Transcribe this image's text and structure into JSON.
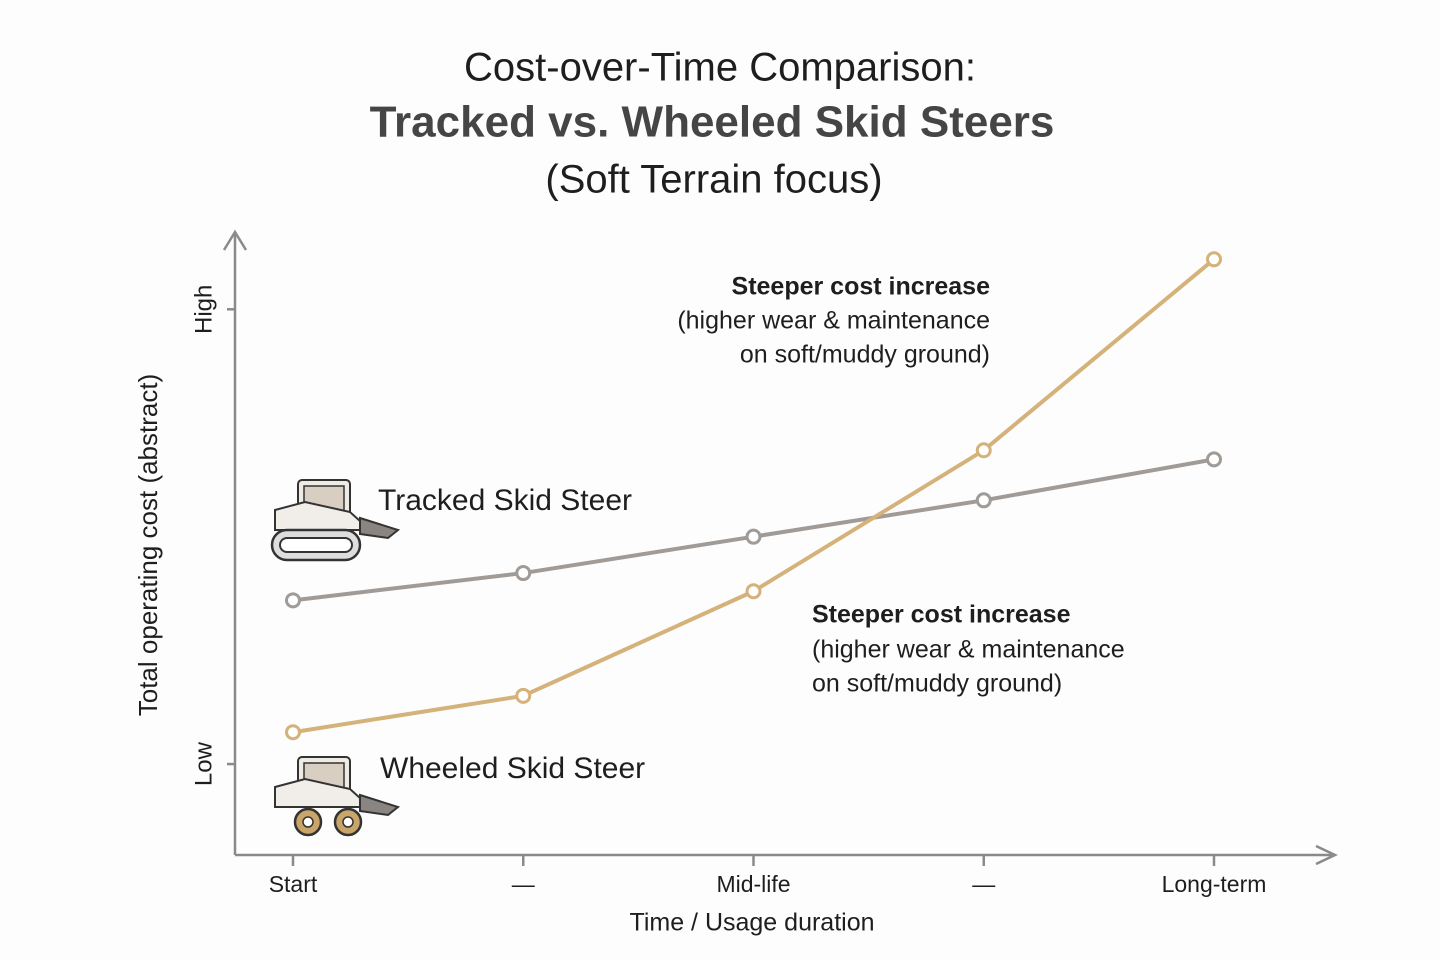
{
  "chart_data": {
    "type": "line",
    "title": [
      "Cost-over-Time Comparison:",
      "Tracked vs. Wheeled Skid Steers"
    ],
    "subtitle": "(Soft Terrain focus)",
    "x_label": "Time / Usage duration",
    "y_label": "Total operating cost (abstract)",
    "categories": [
      "Start",
      "—",
      "Mid-life",
      "—",
      "Long-term"
    ],
    "ylim": [
      -2,
      11.7
    ],
    "yticks": [
      {
        "value": 0,
        "label": "Low"
      },
      {
        "value": 10,
        "label": "High"
      }
    ],
    "series": [
      {
        "name": "Tracked Skid Steer",
        "color": "#a09b96",
        "values": [
          3.6,
          4.2,
          5.0,
          5.8,
          6.7
        ]
      },
      {
        "name": "Wheeled Skid Steer",
        "color": "#d4b27a",
        "values": [
          0.7,
          1.5,
          3.8,
          6.9,
          11.1
        ]
      }
    ],
    "annotations": [
      {
        "title": "Steeper cost increase",
        "lines": [
          "(higher wear & maintenance",
          "on soft/muddy ground)"
        ]
      },
      {
        "title": "Steeper cost increase",
        "lines": [
          "(higher wear & maintenance",
          "on soft/muddy ground)"
        ]
      }
    ]
  }
}
